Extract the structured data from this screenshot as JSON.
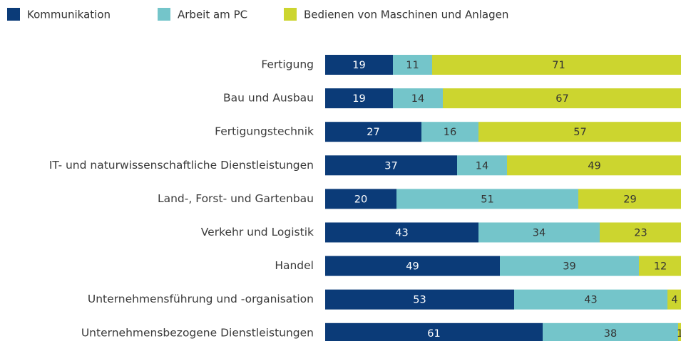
{
  "chart_data": {
    "type": "stacked-bar-horizontal",
    "categories": [
      "Fertigung",
      "Bau und Ausbau",
      "Fertigungstechnik",
      "IT- und naturwissenschaftliche Dienstleistungen",
      "Land-, Forst- und Gartenbau",
      "Verkehr und Logistik",
      "Handel",
      "Unternehmensführung und -organisation",
      "Unternehmensbezogene Dienstleistungen"
    ],
    "series": [
      {
        "name": "Kommunikation",
        "color": "#0b3b78",
        "label_color": "#ffffff",
        "values": [
          19,
          19,
          27,
          37,
          20,
          43,
          49,
          53,
          61
        ]
      },
      {
        "name": "Arbeit am PC",
        "color": "#74c5ca",
        "label_color": "#333333",
        "values": [
          11,
          14,
          16,
          14,
          51,
          34,
          39,
          43,
          38
        ]
      },
      {
        "name": "Bedienen von Maschinen und Anlagen",
        "color": "#ccd52f",
        "label_color": "#333333",
        "values": [
          71,
          67,
          57,
          49,
          29,
          23,
          12,
          4,
          1
        ]
      }
    ],
    "xlim": [
      0,
      100
    ],
    "legend": "top-left"
  }
}
